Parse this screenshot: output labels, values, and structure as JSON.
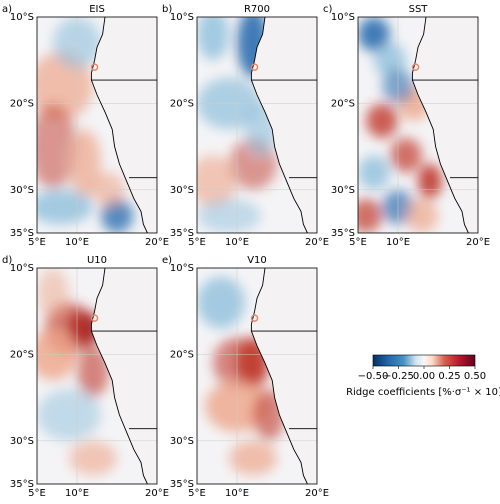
{
  "panels": [
    {
      "label": "a)",
      "title": "EIS"
    },
    {
      "label": "b)",
      "title": "R700"
    },
    {
      "label": "c)",
      "title": "SST"
    },
    {
      "label": "d)",
      "title": "U10"
    },
    {
      "label": "e)",
      "title": "V10"
    }
  ],
  "axes": {
    "xlim": [
      5,
      20
    ],
    "ylim": [
      -35,
      -10
    ],
    "xticks": [
      {
        "value": 5,
        "label": "5°E"
      },
      {
        "value": 10,
        "label": "10°E"
      },
      {
        "value": 20,
        "label": "20°E"
      }
    ],
    "yticks": [
      {
        "value": -10,
        "label": "10°S"
      },
      {
        "value": -20,
        "label": "20°S"
      },
      {
        "value": -30,
        "label": "30°S"
      },
      {
        "value": -35,
        "label": "35°S"
      }
    ]
  },
  "colorbar": {
    "label": "Ridge coefficients [%·σ⁻¹ × 10]",
    "lim": [
      -0.5,
      0.5
    ],
    "ticks": [
      {
        "value": -0.5,
        "label": "−0.50"
      },
      {
        "value": -0.25,
        "label": "−0.25"
      },
      {
        "value": 0,
        "label": "0.00"
      },
      {
        "value": 0.25,
        "label": "0.25"
      },
      {
        "value": 0.5,
        "label": "0.50"
      }
    ]
  }
}
